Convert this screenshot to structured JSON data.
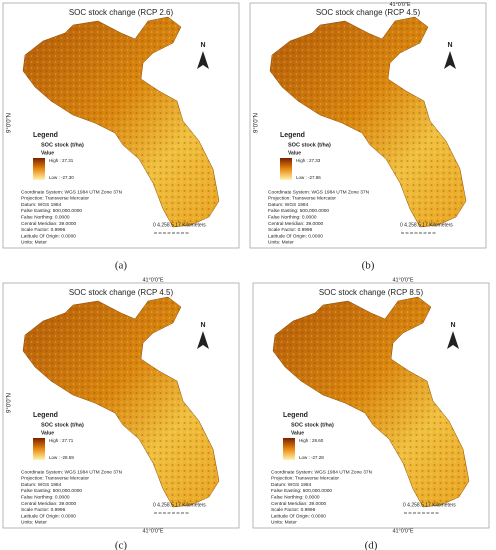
{
  "panels": [
    {
      "title": "SOC stock change (RCP 2.6)",
      "north": "N",
      "side_label": "9°0'0\"N",
      "legend": {
        "title": "Legend",
        "subtitle": "SOC stock (t/ha)",
        "value": "Value",
        "high": "High : 27.31",
        "low": "Low : -27.30"
      },
      "scale": "0  4.258.5      17 Kilometers",
      "caption": "(a)"
    },
    {
      "title": "SOC stock change (RCP 4.5)",
      "north": "N",
      "side_label": "9°0'0\"N",
      "top_label": "41°0'0\"E",
      "legend": {
        "title": "Legend",
        "subtitle": "SOC stock (t/ha)",
        "value": "Value",
        "high": "High : 27.33",
        "low": "Low : -27.86"
      },
      "scale": "0  4.258.5      17 Kilometers",
      "caption": "(b)"
    },
    {
      "title": "SOC stock change (RCP 4.5)",
      "north": "N",
      "side_label": "9°0'0\"N",
      "top_label": "41°0'0\"E",
      "bottom_label": "41°0'0\"E",
      "legend": {
        "title": "Legend",
        "subtitle": "SOC stock (t/ha)",
        "value": "Value",
        "high": "High : 27.71",
        "low": "Low : -28.59"
      },
      "scale": "0  4.258.5      17 Kilometers",
      "caption": "(c)"
    },
    {
      "title": "SOC stock change (RCP 8.5)",
      "north": "N",
      "top_label": "41°0'0\"E",
      "bottom_label": "41°0'0\"E",
      "legend": {
        "title": "Legend",
        "subtitle": "SOC stock (t/ha)",
        "value": "Value",
        "high": "High : 28.60",
        "low": "Low : -27.28"
      },
      "scale": "0  4.258.5      17 Kilometers",
      "caption": "(d)"
    }
  ],
  "map_notes": [
    "Coordinate System: WGS 1984 UTM Zone 37N",
    "Projection: Transverse Mercator",
    "Datum: WGS 1984",
    "False Easting: 500,000.0000",
    "False Northing: 0.0000",
    "Central Meridian: 39.0000",
    "Scale Factor: 0.9996",
    "Latitude Of Origin: 0.0000",
    "Units: Meter"
  ]
}
